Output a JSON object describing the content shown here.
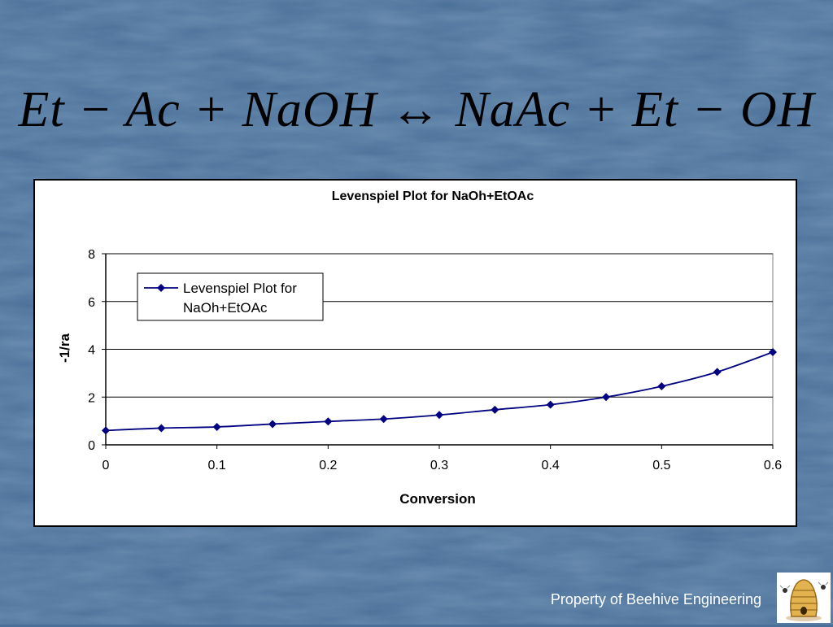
{
  "slide": {
    "equation": "Et − Ac + NaOH ↔ NaAc + Et − OH",
    "footer": "Property of Beehive Engineering",
    "logo_icon": "beehive-icon"
  },
  "chart_data": {
    "type": "line",
    "title": "Levenspiel Plot for NaOh+EtOAc",
    "xlabel": "Conversion",
    "ylabel": "-1/ra",
    "xlim": [
      0,
      0.6
    ],
    "ylim": [
      0,
      8
    ],
    "xticks": [
      "0",
      "0.1",
      "0.2",
      "0.3",
      "0.4",
      "0.5",
      "0.6"
    ],
    "yticks": [
      "0",
      "2",
      "4",
      "6",
      "8"
    ],
    "grid": "horizontal",
    "legend": "top-left",
    "series": [
      {
        "name": "Levenspiel Plot for NaOh+EtOAc",
        "legend_lines": [
          "Levenspiel Plot for",
          "NaOh+EtOAc"
        ],
        "color": "#000080",
        "x": [
          0,
          0.05,
          0.1,
          0.15,
          0.2,
          0.25,
          0.3,
          0.35,
          0.4,
          0.45,
          0.5,
          0.55,
          0.6
        ],
        "y": [
          0.6,
          0.7,
          0.75,
          0.87,
          0.98,
          1.08,
          1.25,
          1.47,
          1.68,
          2.0,
          2.45,
          3.05,
          3.88
        ]
      }
    ]
  }
}
